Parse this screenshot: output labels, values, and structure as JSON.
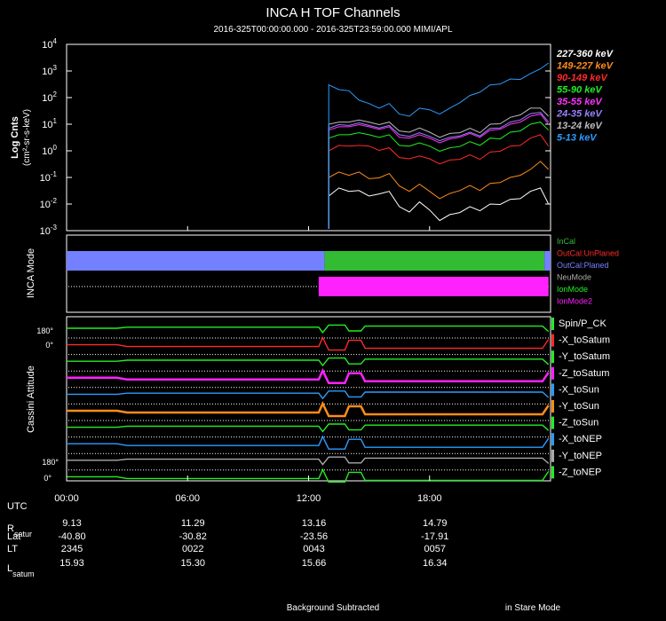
{
  "title": "INCA H TOF Channels",
  "subtitle": "2016-325T00:00:00.000 - 2016-325T23:59:00.000 MIMI/APL",
  "footer": {
    "left": "Background Subtracted",
    "right": "in Stare Mode"
  },
  "ephemeris": {
    "utc_label": "UTC",
    "times": [
      "00:00",
      "06:00",
      "12:00",
      "18:00"
    ],
    "rows": [
      {
        "name": "R",
        "sub": "satur",
        "values": [
          "9.13",
          "11.29",
          "13.16",
          "14.79"
        ]
      },
      {
        "name": "Lat",
        "sub": "",
        "values": [
          "-40.80",
          "-30.82",
          "-23.56",
          "-17.91"
        ]
      },
      {
        "name": "LT",
        "sub": "",
        "values": [
          "2345",
          "0022",
          "0043",
          "0057"
        ]
      },
      {
        "name": "L",
        "sub": "satum",
        "values": [
          "15.93",
          "15.30",
          "15.66",
          "16.34"
        ]
      }
    ]
  },
  "chart_data": [
    {
      "type": "line",
      "name": "flux",
      "ylabel": "Log Cnts",
      "ylabel2": "(cm²-sr-s-keV)",
      "yscale": "log",
      "ylim_exp": [
        -3,
        4
      ],
      "xlim_hours": [
        0,
        24
      ],
      "x_hours": [
        13.0,
        13.5,
        14.0,
        14.5,
        15.0,
        15.5,
        16.0,
        16.5,
        17.0,
        17.5,
        18.0,
        18.5,
        19.0,
        19.5,
        20.0,
        20.5,
        21.0,
        21.5,
        22.0,
        22.5,
        23.0,
        23.5,
        23.9
      ],
      "series": [
        {
          "name": "227-360 keV",
          "color": "#ffffff",
          "values": [
            0.02,
            0.05,
            0.03,
            0.04,
            0.02,
            0.03,
            0.03,
            0.01,
            0.005,
            0.015,
            0.006,
            0.003,
            0.004,
            0.006,
            0.008,
            0.007,
            0.01,
            0.012,
            0.015,
            0.02,
            0.03,
            0.05,
            0.01
          ]
        },
        {
          "name": "149-227 keV",
          "color": "#ff8c1a",
          "values": [
            0.1,
            0.2,
            0.12,
            0.2,
            0.09,
            0.12,
            0.14,
            0.06,
            0.03,
            0.07,
            0.03,
            0.02,
            0.025,
            0.04,
            0.05,
            0.04,
            0.06,
            0.08,
            0.1,
            0.15,
            0.2,
            0.5,
            0.2
          ]
        },
        {
          "name": "90-149 keV",
          "color": "#ff2a2a",
          "values": [
            1,
            2,
            1.5,
            2,
            1.5,
            1.3,
            1.3,
            0.7,
            0.5,
            0.8,
            0.5,
            0.4,
            0.45,
            0.6,
            0.7,
            0.6,
            0.9,
            1.2,
            1.5,
            2,
            3,
            5,
            1.5
          ]
        },
        {
          "name": "55-90 keV",
          "color": "#22ee22",
          "values": [
            3,
            5,
            4,
            6,
            4,
            4,
            4,
            2,
            1.5,
            2.5,
            1.5,
            1.2,
            1.3,
            1.8,
            2.2,
            2,
            3,
            3.5,
            5,
            7,
            10,
            15,
            6
          ]
        },
        {
          "name": "35-55 keV",
          "color": "#ff33ff",
          "values": [
            6,
            10,
            8,
            12,
            8,
            8,
            8,
            4,
            3,
            5,
            3,
            2.5,
            2.8,
            4,
            4.5,
            4,
            6,
            8,
            10,
            15,
            20,
            30,
            10
          ]
        },
        {
          "name": "24-35 keV",
          "color": "#9a80ff",
          "values": [
            7,
            12,
            9,
            14,
            9,
            9,
            9,
            5,
            3.5,
            6,
            3.5,
            3,
            3.2,
            4.5,
            5,
            4.5,
            7,
            9,
            12,
            18,
            25,
            35,
            12
          ]
        },
        {
          "name": "13-24 keV",
          "color": "#bbbbbb",
          "values": [
            10,
            15,
            12,
            18,
            12,
            12,
            12,
            7,
            5,
            9,
            5,
            4,
            4.5,
            6,
            7,
            6,
            10,
            13,
            18,
            28,
            40,
            50,
            20
          ]
        },
        {
          "name": "5-13 keV",
          "color": "#2b9cff",
          "values": [
            300,
            250,
            180,
            100,
            60,
            50,
            60,
            30,
            20,
            50,
            35,
            30,
            40,
            80,
            120,
            200,
            300,
            400,
            500,
            600,
            800,
            1500,
            2000
          ]
        }
      ]
    },
    {
      "type": "bar",
      "name": "inca-mode",
      "ylabel": "INCA Mode",
      "legend": [
        {
          "name": "InCal",
          "color": "#33bb33"
        },
        {
          "name": "OutCal:UnPlaned",
          "color": "#ff2a2a"
        },
        {
          "name": "OutCal:Planed",
          "color": "#7380ff"
        },
        {
          "name": "NeuMode",
          "color": "#aaaaaa"
        },
        {
          "name": "IonMode",
          "color": "#22ee22"
        },
        {
          "name": "IonMode2",
          "color": "#ff22ff"
        }
      ],
      "bands": [
        {
          "row": "cal",
          "state": "OutCal:Planed",
          "start": 0.0,
          "end": 12.8,
          "color": "#7380ff"
        },
        {
          "row": "cal",
          "state": "InCal",
          "start": 12.8,
          "end": 23.7,
          "color": "#33bb33"
        },
        {
          "row": "cal",
          "state": "OutCal:Planed",
          "start": 23.7,
          "end": 24.0,
          "color": "#7380ff"
        },
        {
          "row": "mode",
          "state": "IonMode2",
          "start": 12.5,
          "end": 23.9,
          "color": "#ff22ff"
        }
      ]
    },
    {
      "type": "line",
      "name": "cassini-attitude",
      "ylabel": "Cassini Attitude",
      "tick_top": "180°",
      "tick_top2": "0°",
      "tick_bottom": "180°",
      "tick_bottom2": "0°",
      "xlim_hours": [
        0,
        24
      ],
      "x_ticks": [
        "00:00",
        "06:00",
        "12:00",
        "18:00"
      ],
      "legend": [
        {
          "name": "Spin/P_CK",
          "color": "#22ee22"
        },
        {
          "name": "-X_toSatum",
          "color": "#ff2a2a"
        },
        {
          "name": "-Y_toSatum",
          "color": "#22ee22"
        },
        {
          "name": "-Z_toSatum",
          "color": "#ff22ff"
        },
        {
          "name": "-X_toSun",
          "color": "#2b9cff"
        },
        {
          "name": "-Y_toSun",
          "color": "#ff8c1a"
        },
        {
          "name": "-Z_toSun",
          "color": "#22ee22"
        },
        {
          "name": "-X_toNEP",
          "color": "#2b9cff"
        },
        {
          "name": "-Y_toNEP",
          "color": "#aaaaaa"
        },
        {
          "name": "-Z_toNEP",
          "color": "#22ee22"
        }
      ]
    }
  ]
}
